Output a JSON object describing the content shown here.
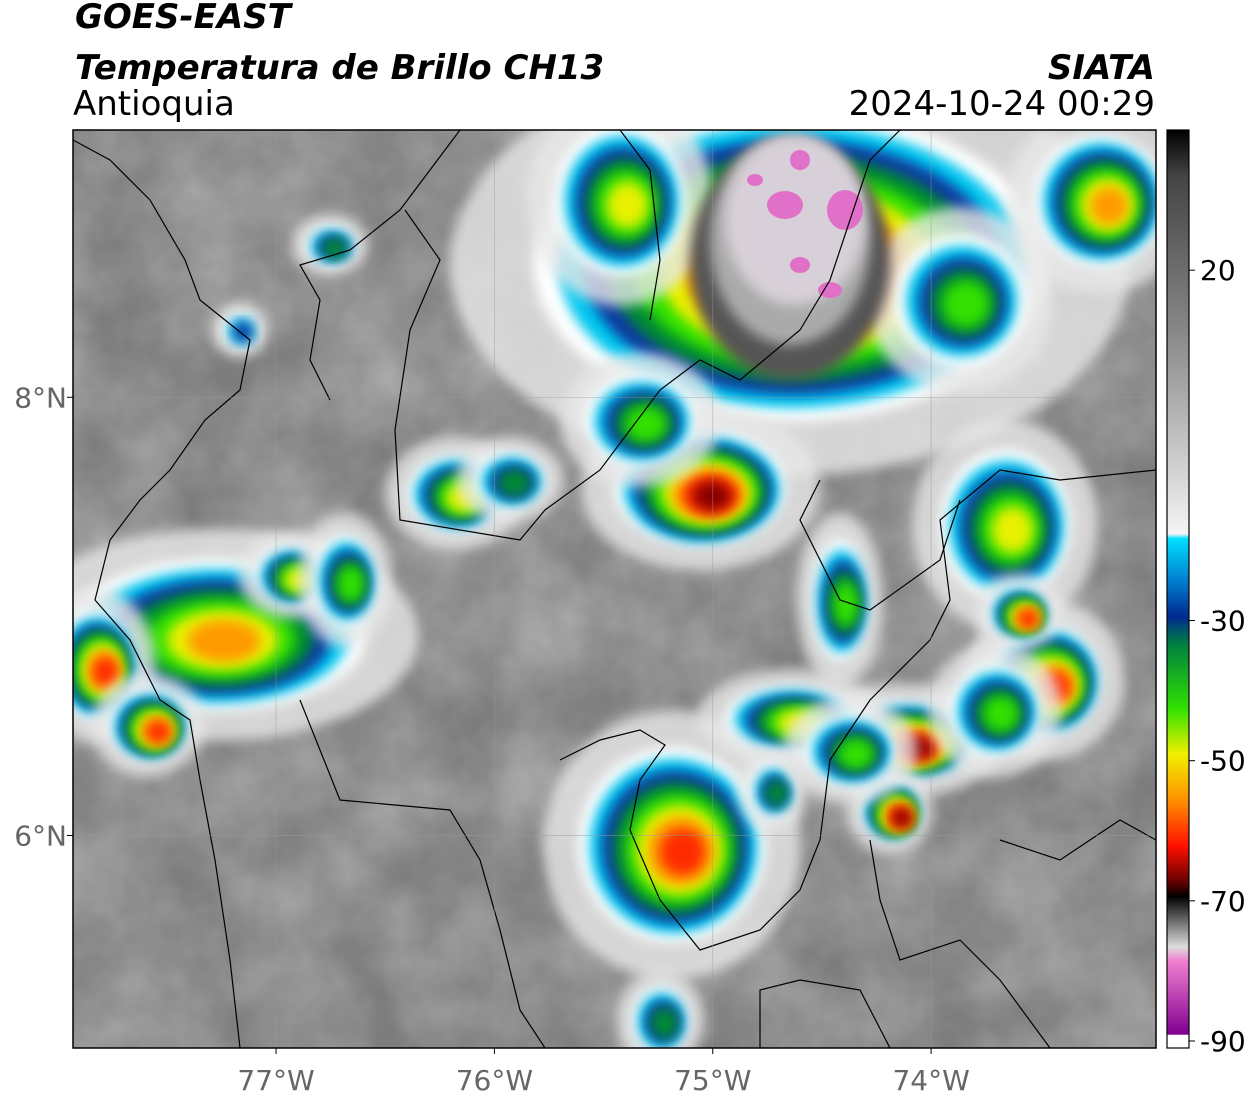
{
  "header": {
    "title": "GOES-EAST",
    "subtitle": "Temperatura de Brillo CH13",
    "region": "Antioquia",
    "source": "SIATA",
    "datetime": "2024-10-24 00:29"
  },
  "map": {
    "lonlim": [
      -77.93,
      -72.97
    ],
    "latlim": [
      5.03,
      9.22
    ],
    "lat_ticks": [
      {
        "value": 8,
        "label": "8°N"
      },
      {
        "value": 6,
        "label": "6°N"
      }
    ],
    "lon_ticks": [
      {
        "value": -77,
        "label": "77°W"
      },
      {
        "value": -76,
        "label": "76°W"
      },
      {
        "value": -75,
        "label": "75°W"
      },
      {
        "value": -74,
        "label": "74°W"
      }
    ]
  },
  "colorbar": {
    "range": [
      -91,
      40
    ],
    "ticks": [
      20,
      -30,
      -50,
      -70,
      -90
    ]
  }
}
